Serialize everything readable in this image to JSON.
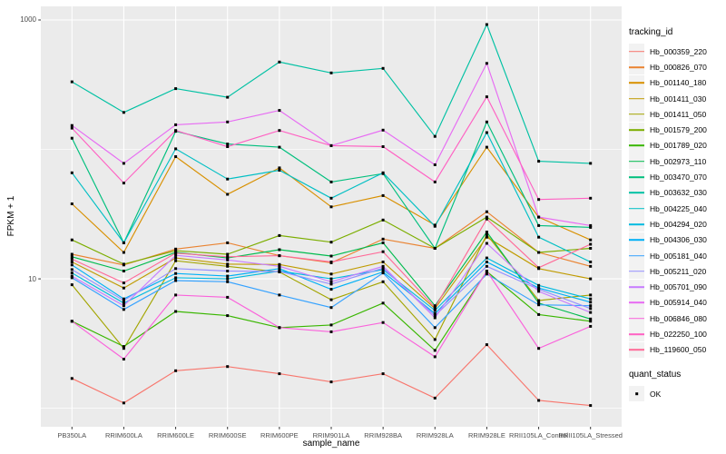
{
  "axes": {
    "y_title": "FPKM + 1",
    "x_title": "sample_name"
  },
  "legend": {
    "tracking_title": "tracking_id",
    "quant_title": "quant_status",
    "quant_items": [
      {
        "label": "OK",
        "shape": "black-square"
      }
    ]
  },
  "chart_data": {
    "type": "line",
    "title": "",
    "xlabel": "sample_name",
    "ylabel": "FPKM + 1",
    "y_scale": "log10",
    "ylim": [
      0.72,
      1274
    ],
    "yticks_major": [
      {
        "value": 10,
        "label": "10"
      },
      {
        "value": 1000,
        "label": "1000"
      }
    ],
    "yticks_minor": [
      1,
      100
    ],
    "grid": "on",
    "panel_bg": "#EBEBEB",
    "grid_color": "#FFFFFF",
    "point_shape": "black-square",
    "legend_position": "right",
    "categories": [
      "PB350LA",
      "RRIM600LA",
      "RRIM600LE",
      "RRIM600SE",
      "RRIM600PE",
      "RRIM901LA",
      "RRIM928BA",
      "RRIM928LA",
      "RRIM928LE",
      "RRII105LA_Control",
      "RRII105LA_Stressed"
    ],
    "series": [
      {
        "name": "Hb_000359_220",
        "color": "#F8766D",
        "values": [
          1.7,
          1.1,
          1.95,
          2.1,
          1.85,
          1.6,
          1.85,
          1.2,
          3.1,
          1.15,
          1.05
        ]
      },
      {
        "name": "Hb_000826_070",
        "color": "#EA8331",
        "values": [
          15.5,
          12.8,
          17,
          19,
          15.1,
          13.3,
          20.3,
          17.2,
          33,
          16,
          12.5
        ]
      },
      {
        "name": "Hb_001140_180",
        "color": "#D89000",
        "values": [
          38,
          16,
          88,
          45,
          72,
          36,
          44,
          26,
          104,
          30,
          20
        ]
      },
      {
        "name": "Hb_001411_030",
        "color": "#C09B00",
        "values": [
          13.5,
          8.5,
          14.5,
          13,
          12.9,
          10.9,
          13.5,
          5.9,
          21,
          12,
          10
        ]
      },
      {
        "name": "Hb_001411_050",
        "color": "#A3A500",
        "values": [
          9,
          2.9,
          13.8,
          12.5,
          11.3,
          6.9,
          9.5,
          3.4,
          22,
          6.8,
          7.5
        ]
      },
      {
        "name": "Hb_001579_200",
        "color": "#7CAE00",
        "values": [
          20,
          13,
          16.5,
          15.5,
          21.6,
          19.2,
          28.5,
          17.2,
          30,
          16,
          17.2
        ]
      },
      {
        "name": "Hb_001789_020",
        "color": "#39B600",
        "values": [
          4.7,
          3.0,
          5.6,
          5.2,
          4.2,
          4.4,
          6.5,
          2.8,
          11.4,
          5.3,
          4.7
        ]
      },
      {
        "name": "Hb_002973_110",
        "color": "#00BB4E",
        "values": [
          14.8,
          11.5,
          16,
          14.5,
          16.8,
          15,
          19,
          6.2,
          23,
          6.5,
          4.9
        ]
      },
      {
        "name": "Hb_003470_070",
        "color": "#00BF7D",
        "values": [
          122,
          19,
          138,
          110,
          104,
          56,
          65,
          17.2,
          163,
          25.8,
          25
        ]
      },
      {
        "name": "Hb_003632_030",
        "color": "#00C1A3",
        "values": [
          333,
          193,
          295,
          253,
          473,
          390,
          423,
          126,
          922,
          81,
          78
        ]
      },
      {
        "name": "Hb_004225_040",
        "color": "#00BFC4",
        "values": [
          66,
          19,
          101,
          59,
          69,
          42,
          66,
          25.5,
          135,
          21,
          13.5
        ]
      },
      {
        "name": "Hb_004294_020",
        "color": "#00BAE0",
        "values": [
          11.1,
          6.5,
          10.2,
          10,
          11.5,
          10,
          11.8,
          5.7,
          14.5,
          8.9,
          7
        ]
      },
      {
        "name": "Hb_004306_030",
        "color": "#00B0F6",
        "values": [
          12.8,
          7,
          11,
          10.5,
          12,
          8.3,
          11.3,
          5.4,
          13.5,
          8.5,
          6.6
        ]
      },
      {
        "name": "Hb_005181_040",
        "color": "#35A2FF",
        "values": [
          10.2,
          5.8,
          9.7,
          9.5,
          7.5,
          6.0,
          11.1,
          4.2,
          10.9,
          6.3,
          6.2
        ]
      },
      {
        "name": "Hb_005211_020",
        "color": "#9590FF",
        "values": [
          11.8,
          6.8,
          12,
          11.5,
          11.4,
          9.1,
          12.1,
          5.2,
          12.5,
          8.3,
          5.9
        ]
      },
      {
        "name": "Hb_005701_090",
        "color": "#C77CFF",
        "values": [
          10.5,
          6.2,
          15.2,
          14,
          12.5,
          9.5,
          12.5,
          5.0,
          18.8,
          8.0,
          5.5
        ]
      },
      {
        "name": "Hb_005914_040",
        "color": "#E76BF3",
        "values": [
          153,
          78,
          155,
          163,
          200,
          107,
          141,
          76,
          462,
          30,
          25.8
        ]
      },
      {
        "name": "Hb_006846_080",
        "color": "#FA62DB",
        "values": [
          4.7,
          2.4,
          7.5,
          7.2,
          4.2,
          3.9,
          4.6,
          2.5,
          11.5,
          2.9,
          4.3
        ]
      },
      {
        "name": "Hb_022250_100",
        "color": "#FF61C3",
        "values": [
          146,
          55,
          140,
          105,
          140,
          107,
          105,
          56,
          255,
          41,
          42
        ]
      },
      {
        "name": "Hb_119600_050",
        "color": "#FF6A98",
        "values": [
          14.2,
          9.3,
          15.8,
          14.8,
          15.1,
          13.5,
          16.2,
          6.0,
          29,
          12.2,
          18.5
        ]
      }
    ]
  }
}
